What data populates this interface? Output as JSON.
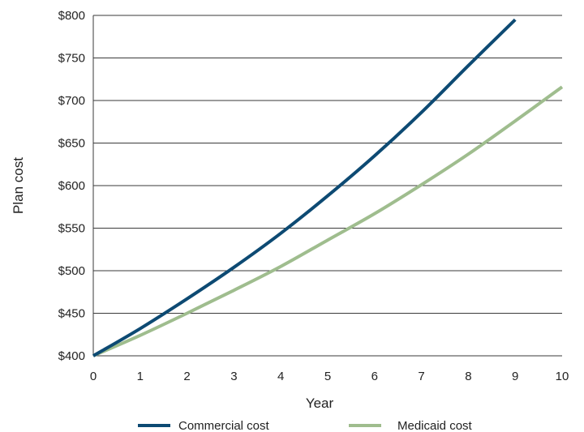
{
  "chart_data": {
    "type": "line",
    "xlabel": "Year",
    "ylabel": "Plan cost",
    "xlim": [
      0,
      10
    ],
    "ylim": [
      400,
      800
    ],
    "x_ticks": [
      "0",
      "1",
      "2",
      "3",
      "4",
      "5",
      "6",
      "7",
      "8",
      "9",
      "10"
    ],
    "y_ticks": [
      "$400",
      "$450",
      "$500",
      "$550",
      "$600",
      "$650",
      "$700",
      "$750",
      "$800"
    ],
    "grid": "horizontal",
    "legend_position": "bottom",
    "series": [
      {
        "name": "Commercial cost",
        "color": "#0d4a73",
        "x": [
          0,
          1,
          2,
          3,
          4,
          5,
          6,
          7,
          8,
          9
        ],
        "values": [
          400,
          432,
          467,
          504,
          544,
          588,
          635,
          686,
          741,
          795
        ]
      },
      {
        "name": "Medicaid cost",
        "color": "#9fbd8e",
        "x": [
          0,
          1,
          2,
          3,
          4,
          5,
          6,
          7,
          8,
          9,
          10
        ],
        "values": [
          400,
          424,
          450,
          477,
          505,
          536,
          567,
          601,
          637,
          676,
          716
        ]
      }
    ]
  }
}
